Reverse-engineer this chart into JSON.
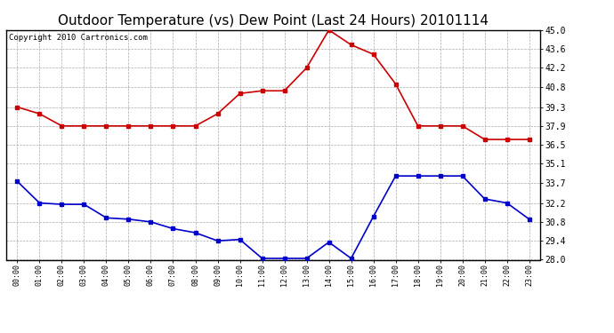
{
  "title": "Outdoor Temperature (vs) Dew Point (Last 24 Hours) 20101114",
  "copyright": "Copyright 2010 Cartronics.com",
  "x_labels": [
    "00:00",
    "01:00",
    "02:00",
    "03:00",
    "04:00",
    "05:00",
    "06:00",
    "07:00",
    "08:00",
    "09:00",
    "10:00",
    "11:00",
    "12:00",
    "13:00",
    "14:00",
    "15:00",
    "16:00",
    "17:00",
    "18:00",
    "19:00",
    "20:00",
    "21:00",
    "22:00",
    "23:00"
  ],
  "temp_color": "#cc0000",
  "dew_color": "#0000cc",
  "ylim": [
    28.0,
    45.0
  ],
  "yticks": [
    28.0,
    29.4,
    30.8,
    32.2,
    33.7,
    35.1,
    36.5,
    37.9,
    39.3,
    40.8,
    42.2,
    43.6,
    45.0
  ],
  "background_color": "#ffffff",
  "plot_bg_color": "#ffffff",
  "grid_color": "#aaaaaa",
  "temp_data": [
    39.3,
    38.8,
    37.9,
    37.9,
    37.9,
    37.9,
    37.9,
    37.9,
    37.9,
    38.8,
    40.3,
    40.5,
    40.5,
    42.2,
    45.0,
    43.9,
    43.2,
    41.0,
    37.9,
    37.9,
    37.9,
    36.9,
    36.9,
    36.9
  ],
  "dew_data": [
    33.8,
    32.2,
    32.1,
    32.1,
    31.1,
    31.0,
    30.8,
    30.3,
    30.0,
    29.4,
    29.5,
    28.1,
    28.1,
    28.1,
    29.3,
    28.1,
    31.2,
    34.2,
    34.2,
    34.2,
    34.2,
    32.5,
    32.2,
    31.0
  ],
  "marker_style": "s",
  "marker_size": 3,
  "line_width": 1.2,
  "title_fontsize": 11,
  "copyright_fontsize": 6.5,
  "tick_fontsize": 7,
  "xtick_fontsize": 6
}
